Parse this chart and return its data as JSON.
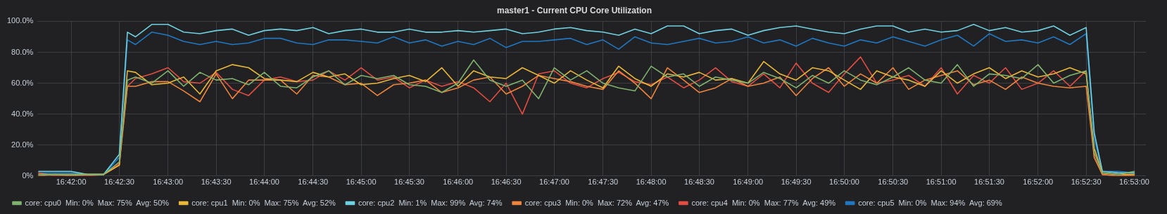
{
  "chart_data": {
    "type": "line",
    "title": "master1 - Current CPU Core Utilization",
    "x": [
      16.6944,
      16.6972,
      16.7,
      16.7028,
      16.7056,
      16.7083,
      16.7097,
      16.7111,
      16.7139,
      16.7167,
      16.7194,
      16.7222,
      16.725,
      16.7278,
      16.7306,
      16.7333,
      16.7361,
      16.7389,
      16.7417,
      16.7444,
      16.7472,
      16.75,
      16.7528,
      16.7556,
      16.7583,
      16.7611,
      16.7639,
      16.7667,
      16.7694,
      16.7722,
      16.775,
      16.7778,
      16.7806,
      16.7833,
      16.7861,
      16.7889,
      16.7917,
      16.7944,
      16.7972,
      16.8,
      16.8028,
      16.8056,
      16.8083,
      16.8111,
      16.8139,
      16.8167,
      16.8194,
      16.8222,
      16.825,
      16.8278,
      16.8306,
      16.8333,
      16.8361,
      16.8389,
      16.8417,
      16.8444,
      16.8472,
      16.85,
      16.8528,
      16.8556,
      16.8583,
      16.8611,
      16.8639,
      16.8667,
      16.8694,
      16.8722,
      16.875,
      16.8764,
      16.8778,
      16.8806,
      16.8833
    ],
    "series": [
      {
        "name": "core: cpu0  Min: 0%  Max: 75%  Avg: 50%",
        "color": "#7eb26d",
        "values": [
          1,
          1,
          1,
          1,
          1,
          9,
          62,
          64,
          60,
          68,
          58,
          67,
          62,
          63,
          59,
          67,
          58,
          57,
          64,
          68,
          59,
          65,
          63,
          65,
          59,
          58,
          54,
          60,
          75,
          62,
          58,
          62,
          50,
          70,
          62,
          68,
          60,
          57,
          55,
          71,
          64,
          66,
          58,
          64,
          62,
          60,
          67,
          63,
          57,
          65,
          60,
          68,
          62,
          59,
          64,
          70,
          62,
          60,
          72,
          58,
          66,
          65,
          63,
          72,
          60,
          65,
          68,
          15,
          2,
          1,
          3
        ]
      },
      {
        "name": "core: cpu1  Min: 0%  Max: 75%  Avg: 52%",
        "color": "#eab839",
        "values": [
          1,
          1,
          1,
          1,
          1,
          7,
          68,
          67,
          59,
          60,
          64,
          53,
          68,
          72,
          70,
          63,
          62,
          61,
          67,
          64,
          66,
          59,
          60,
          63,
          65,
          61,
          70,
          58,
          68,
          64,
          63,
          70,
          65,
          60,
          68,
          62,
          57,
          71,
          63,
          58,
          66,
          64,
          67,
          62,
          63,
          60,
          74,
          66,
          62,
          70,
          68,
          62,
          56,
          68,
          64,
          62,
          58,
          68,
          60,
          66,
          70,
          63,
          68,
          64,
          66,
          70,
          66,
          18,
          2,
          1,
          1
        ]
      },
      {
        "name": "core: cpu2  Min: 1%  Max: 99%  Avg: 74%",
        "color": "#6ed0e0",
        "values": [
          3,
          3,
          3,
          1,
          1,
          14,
          93,
          90,
          98,
          98,
          93,
          92,
          94,
          95,
          91,
          94,
          95,
          94,
          96,
          92,
          94,
          95,
          93,
          93,
          95,
          93,
          93,
          94,
          93,
          94,
          95,
          92,
          93,
          95,
          96,
          94,
          93,
          91,
          95,
          92,
          97,
          97,
          92,
          94,
          95,
          91,
          94,
          96,
          97,
          95,
          93,
          92,
          95,
          97,
          97,
          93,
          95,
          93,
          94,
          98,
          94,
          96,
          93,
          94,
          97,
          91,
          96,
          28,
          3,
          2,
          2
        ]
      },
      {
        "name": "core: cpu3  Min: 0%  Max: 72%  Avg: 47%",
        "color": "#ef843c",
        "values": [
          0,
          1,
          0,
          1,
          1,
          7,
          58,
          58,
          61,
          61,
          55,
          48,
          66,
          50,
          62,
          62,
          62,
          53,
          65,
          64,
          59,
          60,
          52,
          59,
          60,
          62,
          54,
          57,
          62,
          64,
          53,
          58,
          65,
          63,
          61,
          58,
          56,
          68,
          60,
          50,
          70,
          62,
          54,
          57,
          63,
          58,
          60,
          64,
          52,
          63,
          70,
          58,
          66,
          60,
          70,
          56,
          62,
          65,
          68,
          59,
          62,
          56,
          64,
          60,
          58,
          57,
          58,
          12,
          1,
          0,
          0
        ]
      },
      {
        "name": "core: cpu4  Min: 0%  Max: 77%  Avg: 49%",
        "color": "#e24d42",
        "values": [
          2,
          0,
          1,
          0,
          1,
          8,
          58,
          63,
          66,
          70,
          61,
          60,
          67,
          56,
          52,
          62,
          64,
          61,
          62,
          68,
          62,
          70,
          62,
          64,
          57,
          62,
          58,
          61,
          57,
          48,
          60,
          40,
          66,
          68,
          60,
          57,
          63,
          67,
          61,
          59,
          64,
          57,
          62,
          70,
          61,
          58,
          66,
          57,
          73,
          60,
          54,
          66,
          77,
          60,
          62,
          65,
          58,
          70,
          53,
          65,
          60,
          70,
          56,
          60,
          68,
          58,
          68,
          12,
          1,
          0,
          1
        ]
      },
      {
        "name": "core: cpu5  Min: 0%  Max: 94%  Avg: 69%",
        "color": "#1f78c1",
        "values": [
          2,
          2,
          2,
          1,
          1,
          12,
          88,
          85,
          93,
          91,
          87,
          85,
          87,
          85,
          86,
          89,
          89,
          86,
          85,
          88,
          88,
          87,
          86,
          90,
          86,
          88,
          84,
          87,
          85,
          89,
          83,
          87,
          87,
          88,
          89,
          85,
          88,
          82,
          90,
          86,
          85,
          87,
          89,
          86,
          87,
          90,
          86,
          88,
          84,
          89,
          86,
          84,
          88,
          86,
          90,
          87,
          84,
          88,
          91,
          84,
          92,
          87,
          88,
          86,
          90,
          85,
          92,
          24,
          3,
          3,
          2
        ]
      }
    ],
    "xlim": [
      16.6942,
      16.8853
    ],
    "xticks": [
      {
        "value": 16.7,
        "label": "16:42:00"
      },
      {
        "value": 16.7083,
        "label": "16:42:30"
      },
      {
        "value": 16.7167,
        "label": "16:43:00"
      },
      {
        "value": 16.725,
        "label": "16:43:30"
      },
      {
        "value": 16.7333,
        "label": "16:44:00"
      },
      {
        "value": 16.7417,
        "label": "16:44:30"
      },
      {
        "value": 16.75,
        "label": "16:45:00"
      },
      {
        "value": 16.7583,
        "label": "16:45:30"
      },
      {
        "value": 16.7667,
        "label": "16:46:00"
      },
      {
        "value": 16.775,
        "label": "16:46:30"
      },
      {
        "value": 16.7833,
        "label": "16:47:00"
      },
      {
        "value": 16.7917,
        "label": "16:47:30"
      },
      {
        "value": 16.8,
        "label": "16:48:00"
      },
      {
        "value": 16.8083,
        "label": "16:48:30"
      },
      {
        "value": 16.8167,
        "label": "16:49:00"
      },
      {
        "value": 16.825,
        "label": "16:49:30"
      },
      {
        "value": 16.8333,
        "label": "16:50:00"
      },
      {
        "value": 16.8417,
        "label": "16:50:30"
      },
      {
        "value": 16.85,
        "label": "16:51:00"
      },
      {
        "value": 16.8583,
        "label": "16:51:30"
      },
      {
        "value": 16.8667,
        "label": "16:52:00"
      },
      {
        "value": 16.875,
        "label": "16:52:30"
      },
      {
        "value": 16.8833,
        "label": "16:53:00"
      }
    ],
    "ylim": [
      0,
      100
    ],
    "yticks": [
      {
        "value": 0,
        "label": "0%"
      },
      {
        "value": 20,
        "label": "20.0%"
      },
      {
        "value": 40,
        "label": "40.0%"
      },
      {
        "value": 60,
        "label": "60.0%"
      },
      {
        "value": 80,
        "label": "80.0%"
      },
      {
        "value": 100,
        "label": "100.0%"
      }
    ],
    "grid": true,
    "legend": "bottom left",
    "marker": "none",
    "line_style": "solid"
  }
}
